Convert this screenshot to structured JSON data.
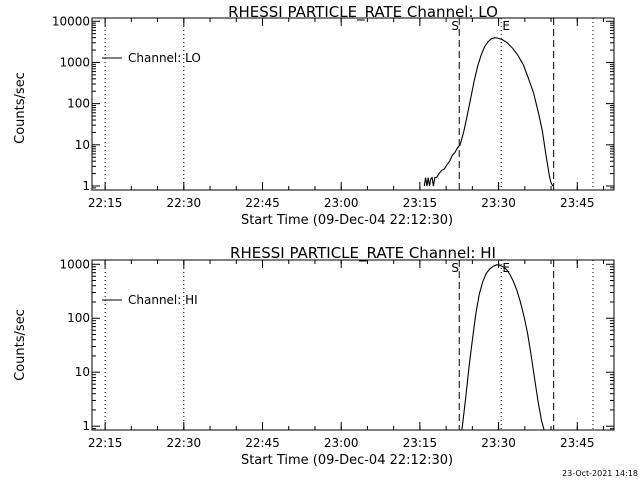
{
  "chart_data": [
    {
      "type": "line",
      "title": "RHESSI PARTICLE_RATE Channel: LO",
      "ylabel": "Counts/sec",
      "xlabel": "Start Time (09-Dec-04 22:12:30)",
      "y_scale": "log",
      "xlim": [
        "22:12:30",
        "23:52:00"
      ],
      "ylim": [
        0.8,
        12000
      ],
      "x_ticks": [
        "22:15",
        "22:30",
        "22:45",
        "23:00",
        "23:15",
        "23:30",
        "23:45"
      ],
      "y_ticks": [
        "1",
        "10",
        "100",
        "1000",
        "10000"
      ],
      "legend": {
        "position": "top-left",
        "entries": [
          "Channel: LO"
        ]
      },
      "series": [
        {
          "name": "Channel: LO",
          "x": [
            "23:15:50",
            "23:16:05",
            "23:16:20",
            "23:16:35",
            "23:16:50",
            "23:17:05",
            "23:17:20",
            "23:17:35",
            "23:17:50",
            "23:18:10",
            "23:18:40",
            "23:19:10",
            "23:19:40",
            "23:20:10",
            "23:20:40",
            "23:21:10",
            "23:21:40",
            "23:22:10",
            "23:22:40",
            "23:23:20",
            "23:24:00",
            "23:24:40",
            "23:25:20",
            "23:26:00",
            "23:26:40",
            "23:27:20",
            "23:28:00",
            "23:28:40",
            "23:29:20",
            "23:29:50",
            "23:30:40",
            "23:31:40",
            "23:32:40",
            "23:33:40",
            "23:34:40",
            "23:35:40",
            "23:36:40",
            "23:37:40",
            "23:38:20",
            "23:39:00",
            "23:39:40",
            "23:40:00",
            "23:40:20"
          ],
          "y": [
            1.0,
            1.6,
            1.0,
            1.6,
            1.0,
            1.5,
            1.6,
            1.0,
            1.6,
            1.6,
            2.0,
            2.4,
            2.6,
            3.3,
            4.0,
            5.5,
            6.5,
            8.5,
            10,
            20,
            50,
            130,
            350,
            800,
            1500,
            2400,
            3200,
            3800,
            4000,
            3900,
            3600,
            3000,
            2200,
            1500,
            900,
            420,
            180,
            55,
            22,
            6,
            1.8,
            1.2,
            1.0
          ]
        }
      ],
      "markers": [
        {
          "label": "",
          "time": "22:15:00",
          "style": "dotted"
        },
        {
          "label": "",
          "time": "22:30:00",
          "style": "dotted"
        },
        {
          "label": "S",
          "time": "23:22:30",
          "style": "dashed"
        },
        {
          "label": "E",
          "time": "23:30:30",
          "style": "dotted"
        },
        {
          "label": "",
          "time": "23:40:30",
          "style": "dashed"
        },
        {
          "label": "",
          "time": "23:48:00",
          "style": "dotted"
        }
      ]
    },
    {
      "type": "line",
      "title": "RHESSI PARTICLE_RATE Channel: HI",
      "ylabel": "Counts/sec",
      "xlabel": "Start Time (09-Dec-04 22:12:30)",
      "y_scale": "log",
      "xlim": [
        "22:12:30",
        "23:52:00"
      ],
      "ylim": [
        0.85,
        1200
      ],
      "x_ticks": [
        "22:15",
        "22:30",
        "22:45",
        "23:00",
        "23:15",
        "23:30",
        "23:45"
      ],
      "y_ticks": [
        "1",
        "10",
        "100",
        "1000"
      ],
      "legend": {
        "position": "top-left",
        "entries": [
          "Channel: HI"
        ]
      },
      "series": [
        {
          "name": "Channel: HI",
          "x": [
            "23:23:00",
            "23:23:40",
            "23:24:20",
            "23:25:00",
            "23:25:40",
            "23:26:20",
            "23:27:00",
            "23:27:40",
            "23:28:20",
            "23:29:00",
            "23:29:40",
            "23:30:10",
            "23:30:50",
            "23:31:30",
            "23:32:10",
            "23:32:50",
            "23:33:30",
            "23:34:10",
            "23:34:50",
            "23:35:30",
            "23:36:10",
            "23:36:50",
            "23:37:30",
            "23:38:10",
            "23:38:40"
          ],
          "y": [
            0.85,
            3,
            12,
            40,
            120,
            280,
            480,
            680,
            820,
            920,
            980,
            960,
            900,
            800,
            650,
            480,
            330,
            200,
            110,
            55,
            22,
            8,
            3,
            1.3,
            0.85
          ]
        }
      ],
      "markers": [
        {
          "label": "",
          "time": "22:15:00",
          "style": "dotted"
        },
        {
          "label": "",
          "time": "22:30:00",
          "style": "dotted"
        },
        {
          "label": "S",
          "time": "23:22:30",
          "style": "dashed"
        },
        {
          "label": "E",
          "time": "23:30:30",
          "style": "dotted"
        },
        {
          "label": "",
          "time": "23:40:30",
          "style": "dashed"
        },
        {
          "label": "",
          "time": "23:48:00",
          "style": "dotted"
        }
      ]
    }
  ],
  "footer": {
    "timestamp": "23-Oct-2021 14:18"
  }
}
